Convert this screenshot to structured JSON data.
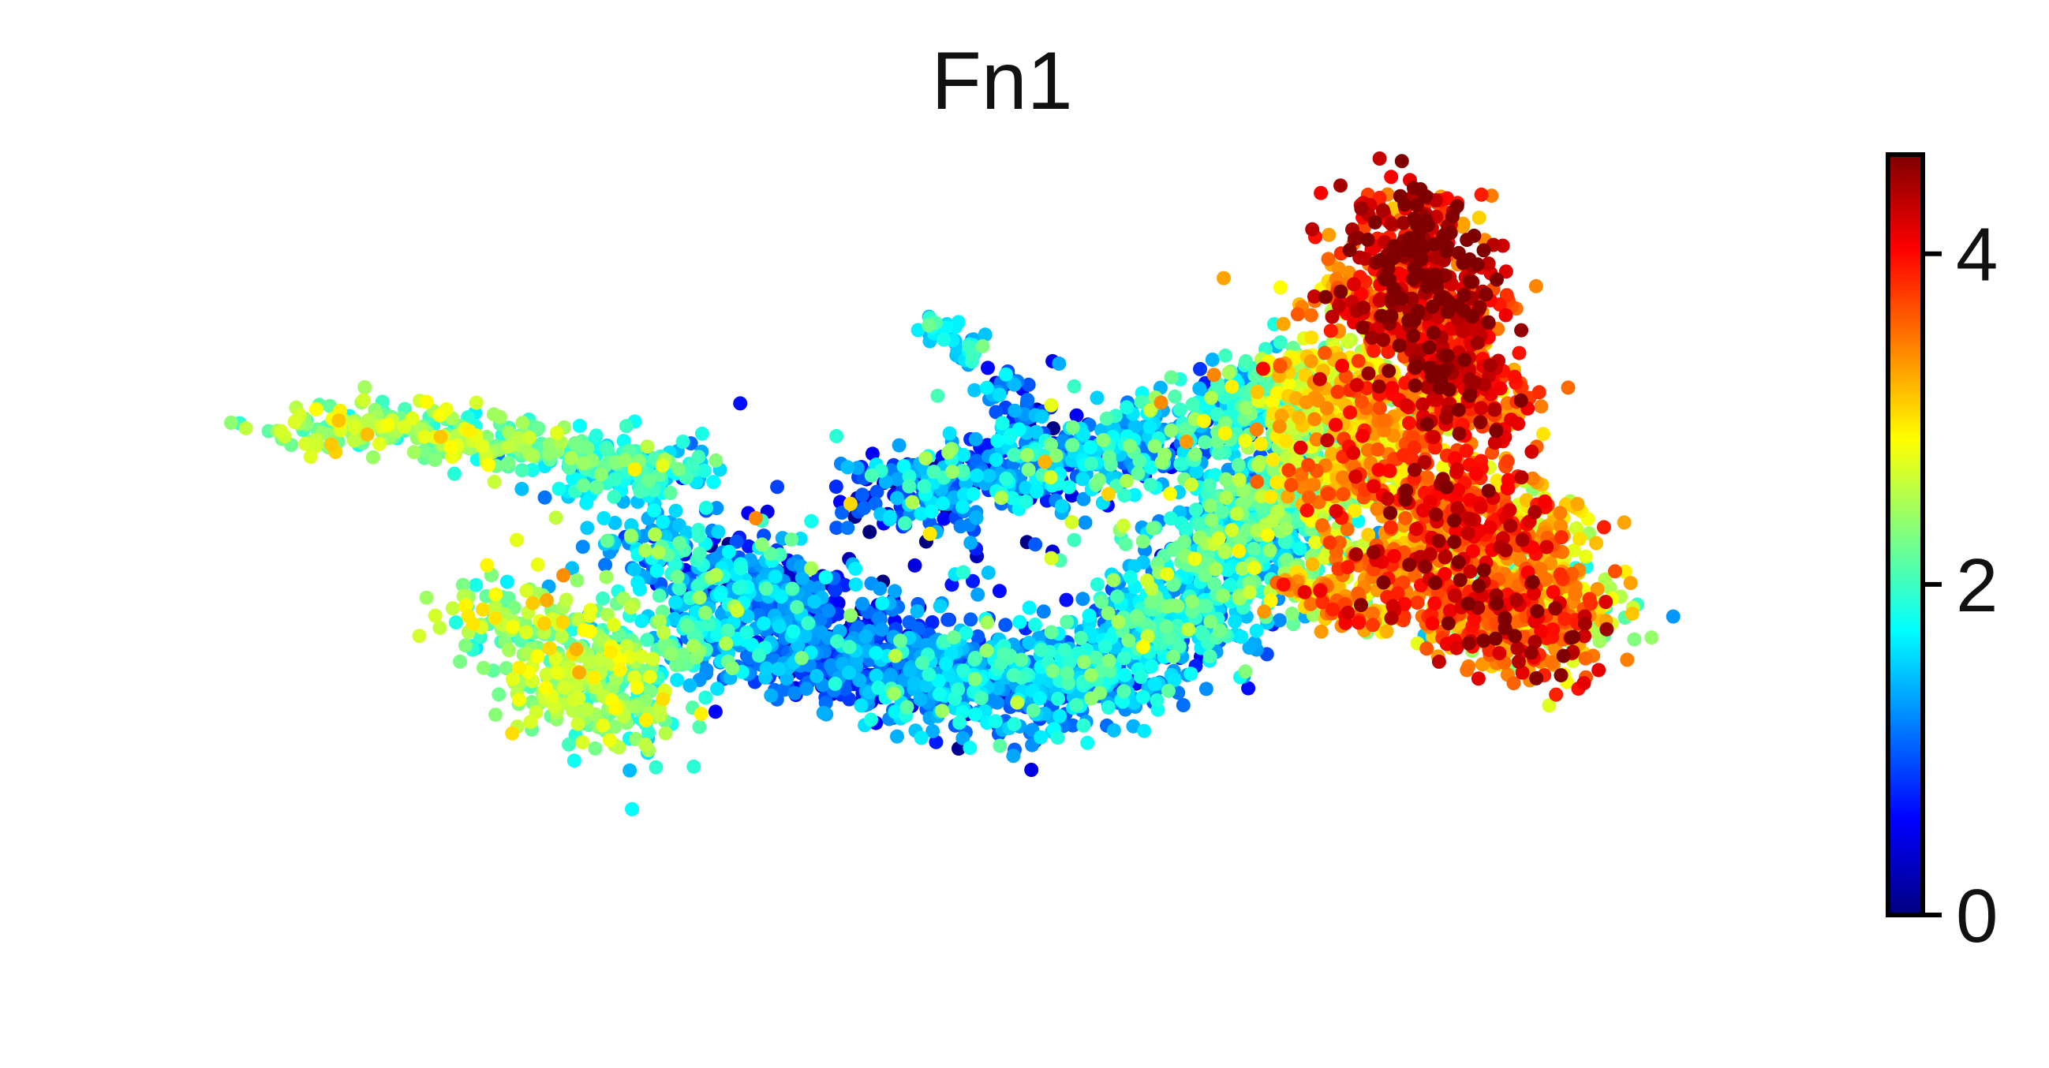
{
  "chart_data": {
    "type": "scatter",
    "title": "Fn1",
    "xlabel": "",
    "ylabel": "",
    "axes_visible": false,
    "grid": false,
    "colormap": "jet",
    "colormap_stops": [
      "#00007f",
      "#0000ff",
      "#007fff",
      "#00ffff",
      "#7fff7f",
      "#ffff00",
      "#ff7f00",
      "#ff0000",
      "#7f0000"
    ],
    "xlim": [
      0,
      100
    ],
    "ylim": [
      0,
      100
    ],
    "colorbar": {
      "min": 0,
      "max": 4.6,
      "ticks": [
        0,
        2,
        4
      ],
      "tick_labels": [
        "0",
        "2",
        "4"
      ],
      "position": "right"
    },
    "regions": [
      {
        "name": "left-arm",
        "points": [
          [
            6,
            64,
            2.4
          ],
          [
            10,
            64,
            2.5
          ],
          [
            14,
            63,
            2.4
          ],
          [
            18,
            62,
            2.2
          ],
          [
            22,
            61,
            2.0
          ],
          [
            26,
            60,
            2.0
          ],
          [
            28,
            58,
            1.8
          ],
          [
            25,
            57,
            1.6
          ]
        ],
        "spread": [
          2.2,
          1.6
        ],
        "density": 420,
        "value_sd": 0.3
      },
      {
        "name": "lower-left-blob",
        "points": [
          [
            19,
            40,
            2.4
          ],
          [
            22,
            36,
            2.5
          ],
          [
            24,
            31,
            2.3
          ],
          [
            27,
            27,
            2.2
          ],
          [
            22,
            30,
            2.4
          ],
          [
            28,
            36,
            2.0
          ],
          [
            31,
            43,
            1.6
          ],
          [
            33,
            38,
            1.3
          ],
          [
            35,
            34,
            1.0
          ]
        ],
        "spread": [
          2.5,
          3.0
        ],
        "density": 650,
        "value_sd": 0.35
      },
      {
        "name": "left-bridge",
        "points": [
          [
            28,
            49,
            1.6
          ],
          [
            31,
            46,
            1.2
          ],
          [
            34,
            44,
            0.9
          ],
          [
            37,
            41,
            0.8
          ]
        ],
        "spread": [
          2.5,
          2.5
        ],
        "density": 260,
        "value_sd": 0.5
      },
      {
        "name": "lower-band",
        "points": [
          [
            38,
            37,
            0.8
          ],
          [
            42,
            34,
            1.0
          ],
          [
            46,
            32,
            1.2
          ],
          [
            50,
            31,
            1.3
          ],
          [
            54,
            32,
            1.4
          ],
          [
            58,
            35,
            1.5
          ],
          [
            61,
            40,
            1.6
          ],
          [
            64,
            46,
            1.7
          ],
          [
            66,
            52,
            1.7
          ],
          [
            68,
            56,
            1.9
          ]
        ],
        "spread": [
          2.8,
          3.5
        ],
        "density": 1700,
        "value_sd": 0.45
      },
      {
        "name": "upper-band",
        "points": [
          [
            45,
            56,
            1.1
          ],
          [
            50,
            58,
            1.2
          ],
          [
            55,
            60,
            1.3
          ],
          [
            60,
            62,
            1.4
          ],
          [
            65,
            66,
            1.6
          ],
          [
            68,
            69,
            1.9
          ]
        ],
        "spread": [
          2.5,
          2.5
        ],
        "density": 750,
        "value_sd": 0.5
      },
      {
        "name": "filament",
        "points": [
          [
            46,
            77,
            1.6
          ],
          [
            48,
            74,
            1.5
          ],
          [
            50,
            69,
            1.1
          ],
          [
            52,
            65,
            0.9
          ],
          [
            54,
            61,
            0.8
          ]
        ],
        "spread": [
          0.6,
          1.0
        ],
        "density": 110,
        "value_sd": 0.4
      },
      {
        "name": "right-peak",
        "points": [
          [
            76,
            90,
            4.1
          ],
          [
            77,
            84,
            4.2
          ],
          [
            78,
            78,
            4.1
          ],
          [
            79,
            72,
            3.9
          ],
          [
            80,
            66,
            3.6
          ],
          [
            74,
            80,
            3.3
          ],
          [
            72,
            72,
            2.9
          ],
          [
            75,
            66,
            3.1
          ],
          [
            70,
            66,
            2.5
          ]
        ],
        "spread": [
          2.3,
          3.0
        ],
        "density": 1300,
        "value_sd": 0.5
      },
      {
        "name": "right-body",
        "points": [
          [
            72,
            58,
            3.0
          ],
          [
            76,
            56,
            3.3
          ],
          [
            80,
            54,
            3.5
          ],
          [
            83,
            50,
            3.2
          ],
          [
            78,
            48,
            3.3
          ],
          [
            74,
            46,
            3.0
          ],
          [
            80,
            42,
            3.6
          ],
          [
            84,
            44,
            2.9
          ],
          [
            86,
            40,
            2.5
          ],
          [
            84,
            36,
            3.6
          ],
          [
            82,
            40,
            3.3
          ]
        ],
        "spread": [
          2.3,
          2.8
        ],
        "density": 1500,
        "value_sd": 0.55
      },
      {
        "name": "right-cluster-small",
        "points": [
          [
            70,
            43,
            3.2
          ],
          [
            72,
            40,
            3.5
          ],
          [
            74,
            39,
            3.0
          ]
        ],
        "spread": [
          1.2,
          1.2
        ],
        "density": 90,
        "value_sd": 0.5
      },
      {
        "name": "scatter-outliers",
        "points": [
          [
            35,
            52,
            1.5
          ],
          [
            42,
            50,
            1.3
          ],
          [
            48,
            49,
            1.0
          ],
          [
            55,
            50,
            1.8
          ],
          [
            60,
            55,
            2.0
          ],
          [
            64,
            45,
            2.2
          ],
          [
            68,
            40,
            2.0
          ],
          [
            40,
            57,
            1.2
          ],
          [
            57,
            67,
            1.8
          ]
        ],
        "spread": [
          4.5,
          4.5
        ],
        "density": 120,
        "value_sd": 0.8
      }
    ]
  }
}
